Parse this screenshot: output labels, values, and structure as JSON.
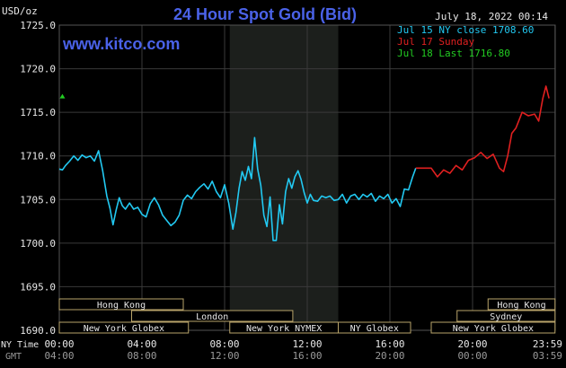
{
  "chart_data": {
    "type": "line",
    "title": "24 Hour Spot Gold (Bid)",
    "unit_label": "USD/oz",
    "watermark": "www.kitco.com",
    "datetime": "July 18, 2022 00:14",
    "ylim": [
      1690.0,
      1725.0
    ],
    "y_ticks": [
      "1690.0",
      "1695.0",
      "1700.0",
      "1705.0",
      "1710.0",
      "1715.0",
      "1720.0",
      "1725.0"
    ],
    "x_ticks_ny": [
      "00:00",
      "04:00",
      "08:00",
      "12:00",
      "16:00",
      "20:00",
      "23:59"
    ],
    "x_ticks_gmt": [
      "04:00",
      "08:00",
      "12:00",
      "16:00",
      "20:00",
      "00:00",
      "03:59"
    ],
    "x_row_labels": {
      "ny": "NY Time",
      "gmt": "GMT"
    },
    "legend": [
      {
        "label": "Jul 15 NY close 1708.60",
        "color": "#22c9f2"
      },
      {
        "label": "Jul 17 Sunday",
        "color": "#e02020"
      },
      {
        "label": "Jul 18 Last 1716.80",
        "color": "#22cc22"
      }
    ],
    "sessions": [
      {
        "label": "Hong Kong",
        "row": 0,
        "start": 0.0,
        "end": 6.0
      },
      {
        "label": "London",
        "row": 1,
        "start": 3.5,
        "end": 11.3
      },
      {
        "label": "New York Globex",
        "row": 2,
        "start": 0.0,
        "end": 6.25
      },
      {
        "label": "New York NYMEX",
        "row": 2,
        "start": 8.25,
        "end": 13.5
      },
      {
        "label": "NY Globex",
        "row": 2,
        "start": 13.5,
        "end": 17.0
      },
      {
        "label": "Hong Kong",
        "row": 0,
        "start": 20.75,
        "end": 23.99
      },
      {
        "label": "Sydney",
        "row": 1,
        "start": 19.25,
        "end": 23.99
      },
      {
        "label": "New York Globex",
        "row": 2,
        "start": 18.0,
        "end": 23.99
      }
    ],
    "shaded_band": {
      "start": 8.25,
      "end": 13.5
    },
    "series": [
      {
        "name": "Jul 15 NY close 1708.60",
        "color": "#22c9f2",
        "x": [
          0,
          0.15,
          0.3,
          0.5,
          0.7,
          0.9,
          1.1,
          1.3,
          1.5,
          1.7,
          1.9,
          2.1,
          2.3,
          2.45,
          2.6,
          2.75,
          2.9,
          3.05,
          3.2,
          3.4,
          3.6,
          3.8,
          4.0,
          4.2,
          4.4,
          4.6,
          4.8,
          5.0,
          5.2,
          5.4,
          5.6,
          5.8,
          6.0,
          6.2,
          6.4,
          6.6,
          6.8,
          7.0,
          7.2,
          7.4,
          7.6,
          7.8,
          8.0,
          8.2,
          8.4,
          8.55,
          8.7,
          8.85,
          9.0,
          9.15,
          9.3,
          9.45,
          9.6,
          9.75,
          9.9,
          10.05,
          10.2,
          10.35,
          10.5,
          10.65,
          10.8,
          10.95,
          11.1,
          11.25,
          11.4,
          11.55,
          11.7,
          11.85,
          12.0,
          12.15,
          12.3,
          12.5,
          12.7,
          12.9,
          13.1,
          13.3,
          13.5,
          13.7,
          13.9,
          14.1,
          14.3,
          14.5,
          14.7,
          14.9,
          15.1,
          15.3,
          15.5,
          15.7,
          15.9,
          16.1,
          16.3,
          16.5,
          16.7,
          16.9,
          17.1,
          17.25
        ],
        "y": [
          1708.5,
          1708.4,
          1708.9,
          1709.4,
          1710.0,
          1709.5,
          1710.1,
          1709.8,
          1710.0,
          1709.4,
          1710.6,
          1708.3,
          1705.4,
          1704.0,
          1702.1,
          1703.8,
          1705.2,
          1704.3,
          1703.9,
          1704.6,
          1703.9,
          1704.1,
          1703.3,
          1703.0,
          1704.5,
          1705.2,
          1704.4,
          1703.2,
          1702.6,
          1702.0,
          1702.4,
          1703.2,
          1704.9,
          1705.5,
          1705.1,
          1705.9,
          1706.4,
          1706.8,
          1706.2,
          1707.1,
          1705.9,
          1705.2,
          1706.7,
          1704.6,
          1701.6,
          1703.5,
          1706.3,
          1708.2,
          1707.2,
          1708.8,
          1707.4,
          1712.1,
          1708.5,
          1706.6,
          1703.2,
          1701.9,
          1705.3,
          1700.3,
          1700.3,
          1704.4,
          1702.2,
          1705.9,
          1707.4,
          1706.3,
          1707.6,
          1708.3,
          1707.3,
          1705.8,
          1704.6,
          1705.6,
          1704.9,
          1704.8,
          1705.4,
          1705.2,
          1705.4,
          1704.9,
          1705.0,
          1705.6,
          1704.6,
          1705.4,
          1705.6,
          1705.0,
          1705.6,
          1705.3,
          1705.7,
          1704.8,
          1705.4,
          1705.1,
          1705.6,
          1704.6,
          1705.1,
          1704.2,
          1706.2,
          1706.1,
          1707.6,
          1708.6
        ]
      },
      {
        "name": "Jul 17 Sunday",
        "color": "#e02020",
        "x": [
          17.25,
          17.5,
          18.0,
          18.3,
          18.6,
          18.9,
          19.2,
          19.5,
          19.8,
          20.1,
          20.4,
          20.7,
          21.0,
          21.3,
          21.5,
          21.7,
          21.9,
          22.1,
          22.4,
          22.7,
          23.0,
          23.2,
          23.4,
          23.55,
          23.7
        ],
        "y": [
          1708.6,
          1708.6,
          1708.6,
          1707.6,
          1708.4,
          1708.0,
          1708.9,
          1708.4,
          1709.5,
          1709.8,
          1710.4,
          1709.7,
          1710.2,
          1708.6,
          1708.2,
          1710.0,
          1712.6,
          1713.2,
          1715.0,
          1714.6,
          1714.8,
          1714.0,
          1716.6,
          1718.0,
          1716.6
        ]
      }
    ],
    "last_point": {
      "x": 0.15,
      "y": 1716.8,
      "color": "#22cc22"
    }
  }
}
